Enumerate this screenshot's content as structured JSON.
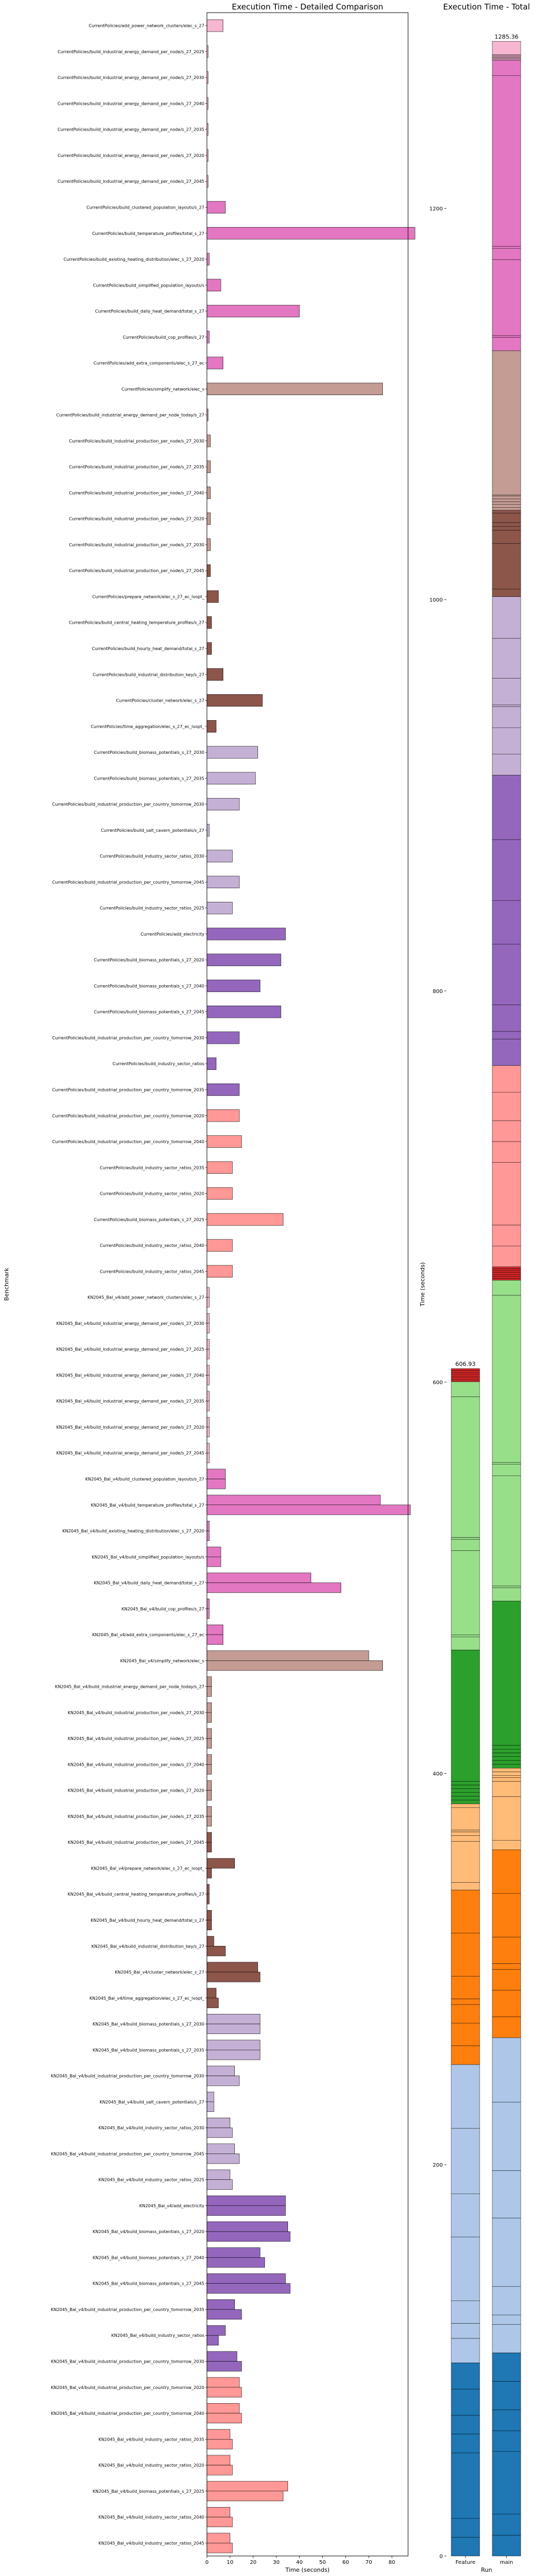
{
  "chart_data": [
    {
      "type": "bar",
      "orientation": "horizontal",
      "title": "Execution Time - Detailed Comparison",
      "xlabel": "Time (seconds)",
      "ylabel": "Benchmark",
      "xlim": [
        0,
        87
      ],
      "xticks": [
        "0",
        "10",
        "20",
        "30",
        "40",
        "50",
        "60",
        "70",
        "80"
      ],
      "bar_colors": [
        "#f7b6d2",
        "#e377c2",
        "#c49c94",
        "#8c564b",
        "#c5b0d5",
        "#9467bd",
        "#ff9896",
        "#d62728",
        "#98df8a",
        "#2ca02c",
        "#ffbb78",
        "#ff7f0e",
        "#aec7e8",
        "#1f77b4"
      ],
      "categories": [
        "CurrentPolicies/add_power_network_clusters/elec_s_27",
        "CurrentPolicies/build_industrial_energy_demand_per_node/s_27_2025",
        "CurrentPolicies/build_industrial_energy_demand_per_node/s_27_2030",
        "CurrentPolicies/build_industrial_energy_demand_per_node/s_27_2040",
        "CurrentPolicies/build_industrial_energy_demand_per_node/s_27_2035",
        "CurrentPolicies/build_industrial_energy_demand_per_node/s_27_2020",
        "CurrentPolicies/build_industrial_energy_demand_per_node/s_27_2045",
        "CurrentPolicies/build_clustered_population_layouts/s_27",
        "CurrentPolicies/build_temperature_profiles/total_s_27",
        "CurrentPolicies/build_existing_heating_distribution/elec_s_27_2020",
        "CurrentPolicies/build_simplified_population_layouts/s",
        "CurrentPolicies/build_daily_heat_demand/total_s_27",
        "CurrentPolicies/build_cop_profiles/s_27",
        "CurrentPolicies/add_extra_components/elec_s_27_ec",
        "CurrentPolicies/simplify_network/elec_s",
        "CurrentPolicies/build_industrial_energy_demand_per_node_today/s_27",
        "CurrentPolicies/build_industrial_production_per_node/s_27_2030",
        "CurrentPolicies/build_industrial_production_per_node/s_27_2035",
        "CurrentPolicies/build_industrial_production_per_node/s_27_2040",
        "CurrentPolicies/build_industrial_production_per_node/s_27_2020",
        "CurrentPolicies/build_industrial_production_per_node/s_27_2030",
        "CurrentPolicies/build_industrial_production_per_node/s_27_2045",
        "CurrentPolicies/prepare_network/elec_s_27_ec_lvopt_",
        "CurrentPolicies/build_central_heating_temperature_profiles/s_27",
        "CurrentPolicies/build_hourly_heat_demand/total_s_27",
        "CurrentPolicies/build_industrial_distribution_key/s_27",
        "CurrentPolicies/cluster_network/elec_s_27",
        "CurrentPolicies/time_aggregation/elec_s_27_ec_lvopt_",
        "CurrentPolicies/build_biomass_potentials_s_27_2030",
        "CurrentPolicies/build_biomass_potentials_s_27_2035",
        "CurrentPolicies/build_industrial_production_per_country_tomorrow_2030",
        "CurrentPolicies/build_salt_cavern_potentials/s_27",
        "CurrentPolicies/build_industry_sector_ratios_2030",
        "CurrentPolicies/build_industrial_production_per_country_tomorrow_2045",
        "CurrentPolicies/build_industry_sector_ratios_2025",
        "CurrentPolicies/add_electricity",
        "CurrentPolicies/build_biomass_potentials_s_27_2020",
        "CurrentPolicies/build_biomass_potentials_s_27_2040",
        "CurrentPolicies/build_biomass_potentials_s_27_2045",
        "CurrentPolicies/build_industrial_production_per_country_tomorrow_2030",
        "CurrentPolicies/build_industry_sector_ratios",
        "CurrentPolicies/build_industrial_production_per_country_tomorrow_2035",
        "CurrentPolicies/build_industrial_production_per_country_tomorrow_2020",
        "CurrentPolicies/build_industrial_production_per_country_tomorrow_2040",
        "CurrentPolicies/build_industry_sector_ratios_2035",
        "CurrentPolicies/build_industry_sector_ratios_2020",
        "CurrentPolicies/build_biomass_potentials_s_27_2025",
        "CurrentPolicies/build_industry_sector_ratios_2040",
        "CurrentPolicies/build_industry_sector_ratios_2045",
        "KN2045_Bal_v4/add_power_network_clusters/elec_s_27",
        "KN2045_Bal_v4/build_industrial_energy_demand_per_node/s_27_2030",
        "KN2045_Bal_v4/build_industrial_energy_demand_per_node/s_27_2025",
        "KN2045_Bal_v4/build_industrial_energy_demand_per_node/s_27_2040",
        "KN2045_Bal_v4/build_industrial_energy_demand_per_node/s_27_2035",
        "KN2045_Bal_v4/build_industrial_energy_demand_per_node/s_27_2020",
        "KN2045_Bal_v4/build_industrial_energy_demand_per_node/s_27_2045",
        "KN2045_Bal_v4/build_clustered_population_layouts/s_27",
        "KN2045_Bal_v4/build_temperature_profiles/total_s_27",
        "KN2045_Bal_v4/build_existing_heating_distribution/elec_s_27_2020",
        "KN2045_Bal_v4/build_simplified_population_layouts/s",
        "KN2045_Bal_v4/build_daily_heat_demand/total_s_27",
        "KN2045_Bal_v4/build_cop_profiles/s_27",
        "KN2045_Bal_v4/add_extra_components/elec_s_27_ec",
        "KN2045_Bal_v4/simplify_network/elec_s",
        "KN2045_Bal_v4/build_industrial_energy_demand_per_node_today/s_27",
        "KN2045_Bal_v4/build_industrial_production_per_node/s_27_2030",
        "KN2045_Bal_v4/build_industrial_production_per_node/s_27_2025",
        "KN2045_Bal_v4/build_industrial_production_per_node/s_27_2040",
        "KN2045_Bal_v4/build_industrial_production_per_node/s_27_2020",
        "KN2045_Bal_v4/build_industrial_production_per_node/s_27_2035",
        "KN2045_Bal_v4/build_industrial_production_per_node/s_27_2045",
        "KN2045_Bal_v4/prepare_network/elec_s_27_ec_lvopt_",
        "KN2045_Bal_v4/build_central_heating_temperature_profiles/s_27",
        "KN2045_Bal_v4/build_hourly_heat_demand/total_s_27",
        "KN2045_Bal_v4/build_industrial_distribution_key/s_27",
        "KN2045_Bal_v4/cluster_network/elec_s_27",
        "KN2045_Bal_v4/time_aggregation/elec_s_27_ec_lvopt_",
        "KN2045_Bal_v4/build_biomass_potentials_s_27_2030",
        "KN2045_Bal_v4/build_biomass_potentials_s_27_2035",
        "KN2045_Bal_v4/build_industrial_production_per_country_tomorrow_2030",
        "KN2045_Bal_v4/build_salt_cavern_potentials/s_27",
        "KN2045_Bal_v4/build_industry_sector_ratios_2030",
        "KN2045_Bal_v4/build_industrial_production_per_country_tomorrow_2045",
        "KN2045_Bal_v4/build_industry_sector_ratios_2025",
        "KN2045_Bal_v4/add_electricity",
        "KN2045_Bal_v4/build_biomass_potentials_s_27_2020",
        "KN2045_Bal_v4/build_biomass_potentials_s_27_2040",
        "KN2045_Bal_v4/build_biomass_potentials_s_27_2045",
        "KN2045_Bal_v4/build_industrial_production_per_country_tomorrow_2035",
        "KN2045_Bal_v4/build_industry_sector_ratios",
        "KN2045_Bal_v4/build_industrial_production_per_country_tomorrow_2030",
        "KN2045_Bal_v4/build_industrial_production_per_country_tomorrow_2020",
        "KN2045_Bal_v4/build_industrial_production_per_country_tomorrow_2040",
        "KN2045_Bal_v4/build_industry_sector_ratios_2035",
        "KN2045_Bal_v4/build_industry_sector_ratios_2020",
        "KN2045_Bal_v4/build_biomass_potentials_s_27_2025",
        "KN2045_Bal_v4/build_industry_sector_ratios_2040",
        "KN2045_Bal_v4/build_industry_sector_ratios_2045"
      ],
      "series": [
        {
          "name": "Feature",
          "values": [
            7,
            0.5,
            0.5,
            0.5,
            0.5,
            0.5,
            0.5,
            8,
            90,
            1,
            6,
            40,
            1,
            7,
            76,
            0.5,
            1.5,
            1.5,
            1.5,
            1.5,
            1.5,
            1.5,
            5,
            2,
            2,
            7,
            24,
            4,
            22,
            21,
            14,
            1,
            11,
            14,
            11,
            34,
            32,
            23,
            32,
            14,
            4,
            14,
            14,
            15,
            11,
            11,
            33,
            11,
            11,
            1,
            1,
            1,
            1,
            1,
            1,
            1,
            8,
            75,
            1,
            6,
            45,
            1,
            7,
            70,
            2,
            2,
            2,
            2,
            2,
            2,
            2,
            12,
            1,
            2,
            3,
            22,
            4,
            23,
            23,
            12,
            3,
            10,
            12,
            10,
            34,
            35,
            23,
            34,
            12,
            8,
            13,
            14,
            14,
            10,
            10,
            35,
            10,
            10
          ]
        },
        {
          "name": "main",
          "values": [
            null,
            null,
            null,
            null,
            null,
            null,
            null,
            null,
            null,
            null,
            null,
            null,
            null,
            null,
            null,
            null,
            null,
            null,
            null,
            null,
            null,
            null,
            null,
            null,
            null,
            null,
            null,
            null,
            null,
            null,
            null,
            null,
            null,
            null,
            null,
            null,
            null,
            null,
            null,
            null,
            null,
            null,
            null,
            null,
            null,
            null,
            null,
            null,
            null,
            1,
            1,
            1,
            1,
            1,
            1,
            1,
            8,
            88,
            1,
            6,
            58,
            1,
            7,
            76,
            2,
            2,
            2,
            2,
            2,
            2,
            2,
            2,
            1,
            2,
            8,
            23,
            5,
            23,
            23,
            14,
            3,
            11,
            14,
            11,
            34,
            36,
            25,
            36,
            15,
            5,
            15,
            15,
            15,
            11,
            11,
            33,
            11,
            11
          ]
        }
      ]
    },
    {
      "type": "stacked-bar",
      "title": "Execution Time - Total",
      "xlabel": "Run",
      "ylabel": "Time (seconds)",
      "categories": [
        "Feature",
        "main"
      ],
      "totals": [
        606.93,
        1285.36
      ],
      "total_labels": [
        "606.93",
        "1285.36"
      ],
      "ylim": [
        0,
        1300
      ],
      "yticks": [
        "0",
        "200",
        "400",
        "600",
        "800",
        "1000",
        "1200"
      ]
    }
  ]
}
